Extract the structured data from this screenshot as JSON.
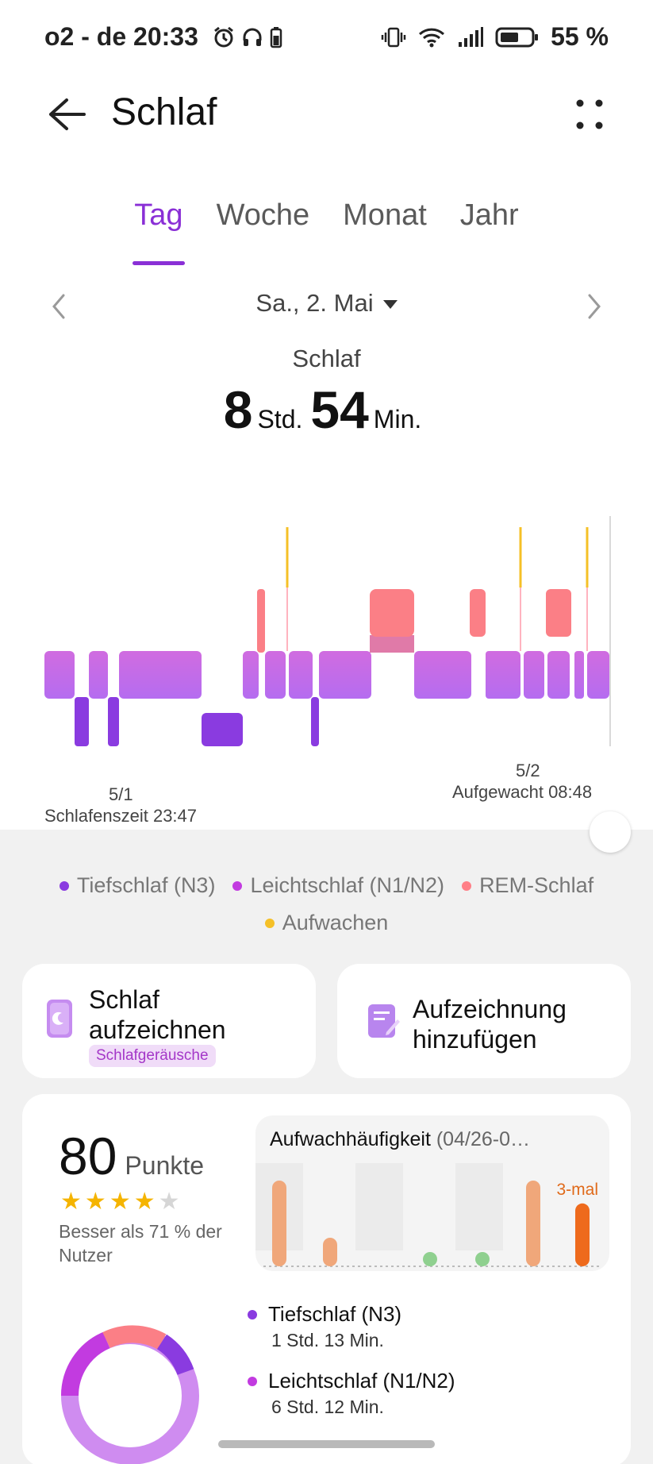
{
  "status_bar": {
    "carrier_time": "o2 - de 20:33",
    "battery_percent": "55 %",
    "icons_left": [
      "alarm-icon",
      "headphones-icon",
      "battery-small-icon"
    ],
    "icons_right": [
      "vibrate-icon",
      "wifi-icon",
      "signal-icon",
      "battery-icon"
    ]
  },
  "header": {
    "title": "Schlaf"
  },
  "tabs": [
    {
      "label": "Tag",
      "active": true
    },
    {
      "label": "Woche",
      "active": false
    },
    {
      "label": "Monat",
      "active": false
    },
    {
      "label": "Jahr",
      "active": false
    }
  ],
  "date": {
    "label": "Sa., 2. Mai"
  },
  "summary": {
    "label": "Schlaf",
    "hours": "8",
    "hours_unit": "Std.",
    "minutes": "54",
    "minutes_unit": "Min."
  },
  "chart": {
    "start_date": "5/1",
    "start_label": "Schlafenszeit 23:47",
    "end_date": "5/2",
    "end_label": "Aufgewacht 08:48"
  },
  "legend": [
    {
      "label": "Tiefschlaf (N3)",
      "color": "#8a3be0"
    },
    {
      "label": "Leichtschlaf (N1/N2)",
      "color": "#c23be0"
    },
    {
      "label": "REM-Schlaf",
      "color": "#ff7f87"
    },
    {
      "label": "Aufwachen",
      "color": "#f5c027"
    }
  ],
  "actions": {
    "record_title": "Schlaf aufzeichnen",
    "record_badge": "Schlafgeräusche",
    "add_title": "Aufzeichnung hinzufügen"
  },
  "score": {
    "value": "80",
    "unit": "Punkte",
    "stars": 4,
    "max_stars": 5,
    "better_than": "Besser als 71 % der Nutzer"
  },
  "wake_frequency": {
    "title": "Aufwachhäufigkeit",
    "range": "(04/26-0…",
    "current_label": "3-mal",
    "values": [
      3,
      1,
      0.5,
      0.5,
      3,
      2.2
    ]
  },
  "stages": [
    {
      "name": "Tiefschlaf (N3)",
      "value": "1 Std. 13 Min.",
      "color": "#8a3be0"
    },
    {
      "name": "Leichtschlaf (N1/N2)",
      "value": "6 Std. 12 Min.",
      "color": "#c23be0"
    }
  ]
}
